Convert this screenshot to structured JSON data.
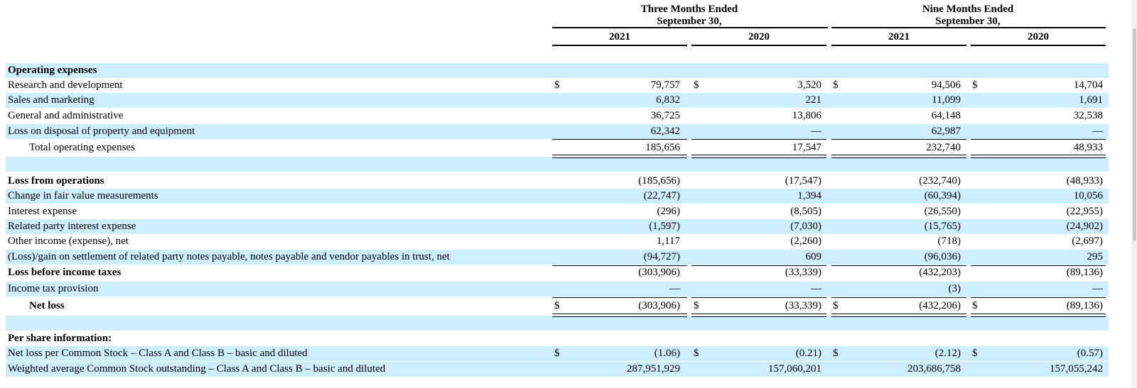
{
  "headers": {
    "group1_line1": "Three Months Ended",
    "group1_line2": "September 30,",
    "group2_line1": "Nine Months Ended",
    "group2_line2": "September 30,",
    "years": [
      "2021",
      "2020",
      "2021",
      "2020"
    ]
  },
  "rows": [
    {
      "label": "Operating expenses",
      "bold": true,
      "values": []
    },
    {
      "label": "Research and development",
      "dollar": true,
      "values": [
        "79,757",
        "3,520",
        "94,506",
        "14,704"
      ]
    },
    {
      "label": "Sales and marketing",
      "values": [
        "6,832",
        "221",
        "11,099",
        "1,691"
      ]
    },
    {
      "label": "General and administrative",
      "values": [
        "36,725",
        "13,806",
        "64,148",
        "32,538"
      ]
    },
    {
      "label": "Loss on disposal of property and equipment",
      "values": [
        "62,342",
        "—",
        "62,987",
        "—"
      ]
    },
    {
      "label": "Total operating expenses",
      "indent": true,
      "values": [
        "185,656",
        "17,547",
        "232,740",
        "48,933"
      ]
    },
    {
      "label": "",
      "values": []
    },
    {
      "label": "Loss from operations",
      "bold": true,
      "values": [
        "(185,656)",
        "(17,547)",
        "(232,740)",
        "(48,933)"
      ]
    },
    {
      "label": "Change in fair value measurements",
      "values": [
        "(22,747)",
        "1,394",
        "(60,394)",
        "10,056"
      ]
    },
    {
      "label": "Interest expense",
      "values": [
        "(296)",
        "(8,505)",
        "(26,550)",
        "(22,955)"
      ]
    },
    {
      "label": "Related party interest expense",
      "values": [
        "(1,597)",
        "(7,030)",
        "(15,765)",
        "(24,902)"
      ]
    },
    {
      "label": "Other income (expense), net",
      "values": [
        "1,117",
        "(2,260)",
        "(718)",
        "(2,697)"
      ]
    },
    {
      "label": "(Loss)/gain on settlement of related party notes payable, notes payable and vendor payables in trust, net",
      "values": [
        "(94,727)",
        "609",
        "(96,036)",
        "295"
      ]
    },
    {
      "label": "Loss before income taxes",
      "bold": true,
      "values": [
        "(303,906)",
        "(33,339)",
        "(432,203)",
        "(89,136)"
      ]
    },
    {
      "label": "Income tax provision",
      "values": [
        "—",
        "—",
        "(3)",
        "—"
      ]
    },
    {
      "label": "Net loss",
      "bold": true,
      "indent": true,
      "dollar": true,
      "values": [
        "(303,906)",
        "(33,339)",
        "(432,206)",
        "(89,136)"
      ]
    },
    {
      "label": "",
      "values": []
    },
    {
      "label": "Per share information:",
      "bold": true,
      "values": []
    },
    {
      "label": "Net loss per Common Stock – Class A and Class B – basic and diluted",
      "dollar": true,
      "values": [
        "(1.06)",
        "(0.21)",
        "(2.12)",
        "(0.57)"
      ]
    },
    {
      "label": "Weighted average Common Stock outstanding – Class A and Class B – basic and diluted",
      "values": [
        "287,951,929",
        "157,060,201",
        "203,686,758",
        "157,055,242"
      ]
    }
  ],
  "currency_symbol": "$"
}
